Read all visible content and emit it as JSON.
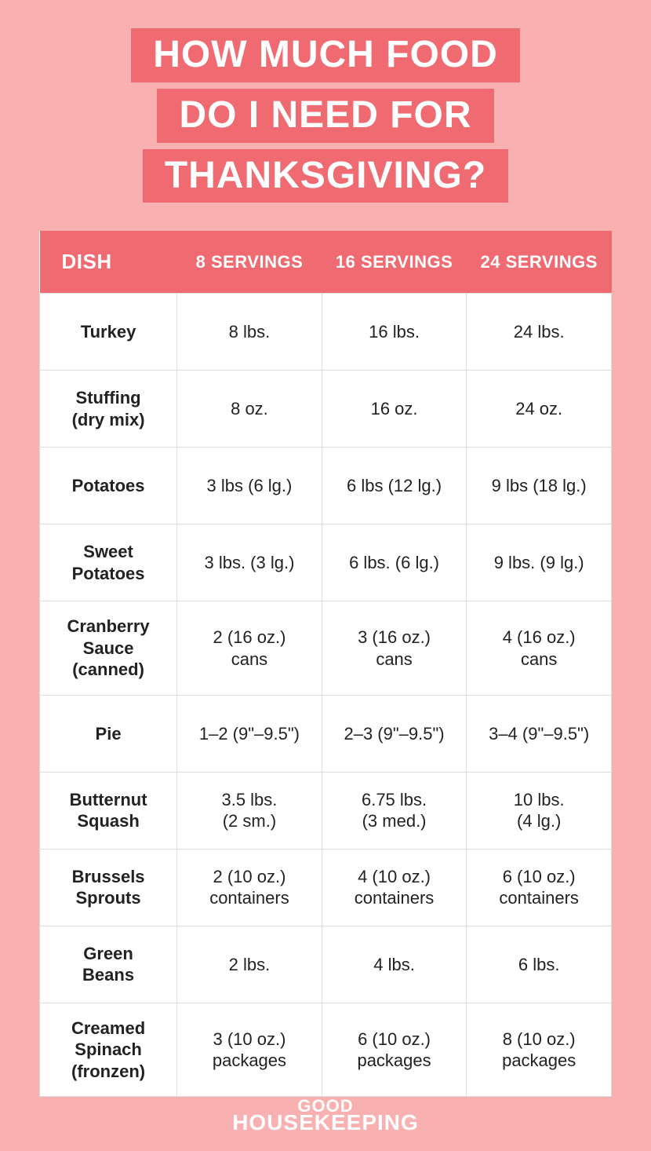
{
  "colors": {
    "page_bg": "#f9b0b1",
    "accent": "#ef6b71",
    "white": "#ffffff",
    "cell_border": "#dddddd",
    "text": "#222222"
  },
  "title": {
    "line1": "HOW MUCH FOOD",
    "line2": "DO I NEED FOR",
    "line3": "THANKSGIVING?",
    "fontsize": 48,
    "bg": "#ef6b71",
    "color": "#ffffff"
  },
  "table": {
    "header_bg": "#ef6b71",
    "header_color": "#ffffff",
    "cell_bg": "#ffffff",
    "border_color": "#dddddd",
    "header_fontsize": 22,
    "dish_header_fontsize": 26,
    "cell_fontsize": 22,
    "columns": [
      "DISH",
      "8 SERVINGS",
      "16 SERVINGS",
      "24 SERVINGS"
    ],
    "rows": [
      {
        "dish": "Turkey",
        "v8": "8 lbs.",
        "v16": "16 lbs.",
        "v24": "24 lbs."
      },
      {
        "dish": "Stuffing\n(dry mix)",
        "v8": "8 oz.",
        "v16": "16 oz.",
        "v24": "24 oz."
      },
      {
        "dish": "Potatoes",
        "v8": "3 lbs (6 lg.)",
        "v16": "6 lbs (12 lg.)",
        "v24": "9 lbs (18 lg.)"
      },
      {
        "dish": "Sweet\nPotatoes",
        "v8": "3 lbs. (3 lg.)",
        "v16": "6 lbs. (6 lg.)",
        "v24": "9 lbs. (9 lg.)"
      },
      {
        "dish": "Cranberry\nSauce\n(canned)",
        "v8": "2 (16 oz.)\ncans",
        "v16": "3 (16 oz.)\ncans",
        "v24": "4 (16 oz.)\ncans"
      },
      {
        "dish": "Pie",
        "v8": "1–2 (9\"–9.5\")",
        "v16": "2–3 (9\"–9.5\")",
        "v24": "3–4 (9\"–9.5\")"
      },
      {
        "dish": "Butternut\nSquash",
        "v8": "3.5 lbs.\n(2 sm.)",
        "v16": "6.75 lbs.\n(3 med.)",
        "v24": "10 lbs.\n(4 lg.)"
      },
      {
        "dish": "Brussels\nSprouts",
        "v8": "2 (10 oz.)\ncontainers",
        "v16": "4 (10 oz.)\ncontainers",
        "v24": "6 (10 oz.)\ncontainers"
      },
      {
        "dish": "Green\nBeans",
        "v8": "2 lbs.",
        "v16": "4 lbs.",
        "v24": "6 lbs."
      },
      {
        "dish": "Creamed\nSpinach\n(fronzen)",
        "v8": "3 (10 oz.)\npackages",
        "v16": "6 (10 oz.)\npackages",
        "v24": "8 (10 oz.)\npackages"
      }
    ]
  },
  "footer": {
    "line1": "GOOD",
    "line2": "HOUSEKEEPING",
    "color": "#ffffff"
  }
}
